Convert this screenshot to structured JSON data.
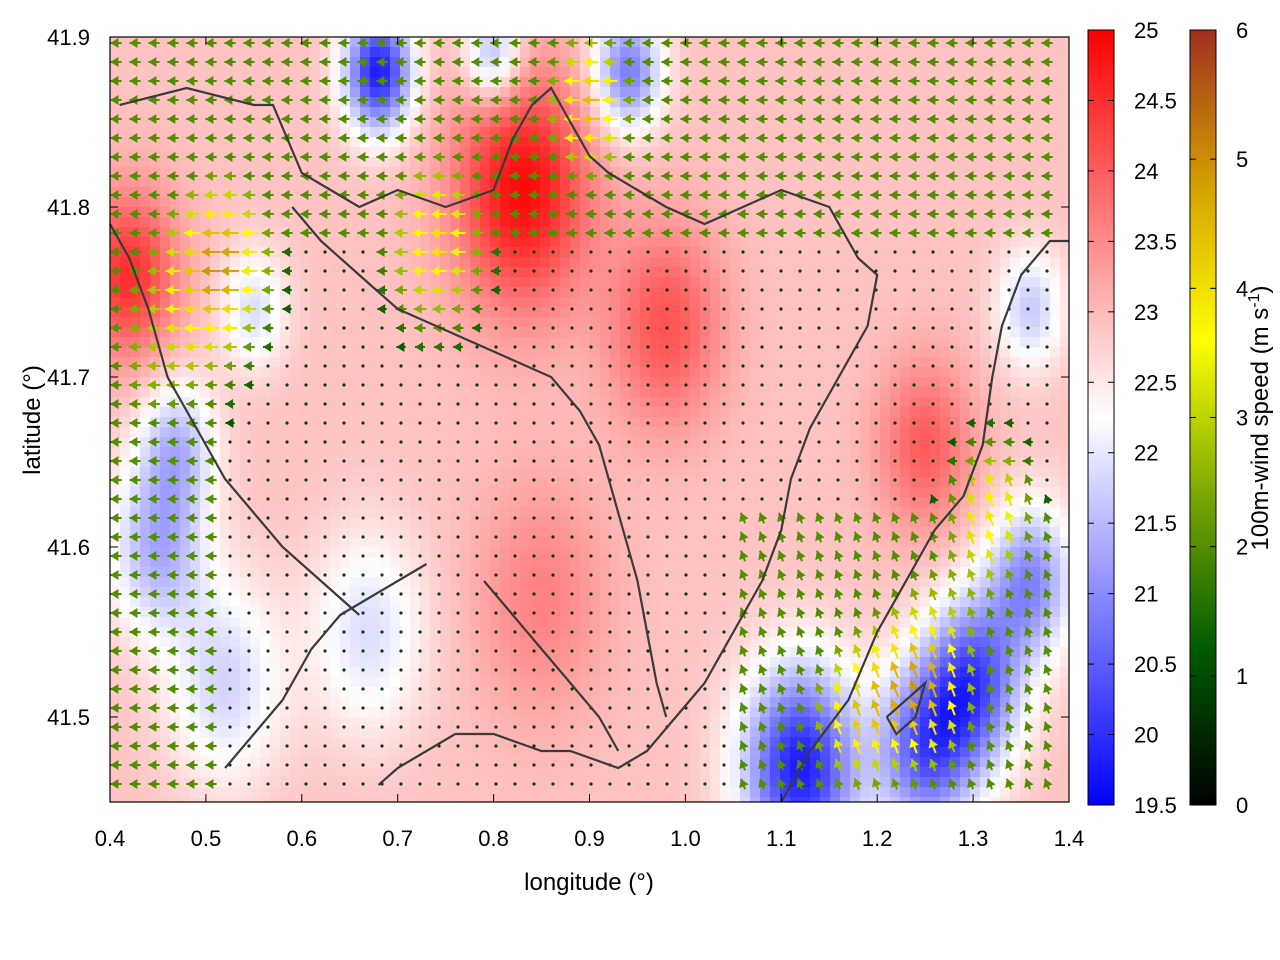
{
  "chart_data": {
    "type": "heatmap",
    "xlabel": "longitude (°)",
    "ylabel": "latitude (°)",
    "xlim": [
      0.4,
      1.4
    ],
    "ylim": [
      1.45,
      1.9
    ],
    "x_ticks": [
      "0.4",
      "0.5",
      "0.6",
      "0.7",
      "0.8",
      "0.9",
      "1.0",
      "1.1",
      "1.2",
      "1.3",
      "1.4"
    ],
    "y_ticks": [
      "41.5",
      "41.6",
      "41.7",
      "41.8",
      "41.9"
    ],
    "y_tick_values": [
      1.5,
      1.6,
      1.7,
      1.8,
      1.9
    ],
    "temperature_colorbar": {
      "range": [
        19.5,
        25
      ],
      "ticks": [
        "19.5",
        "20",
        "20.5",
        "21",
        "21.5",
        "22",
        "22.5",
        "23",
        "23.5",
        "24",
        "24.5",
        "25"
      ],
      "colors": [
        "#0000ff",
        "#ffffff",
        "#ff0000"
      ]
    },
    "wind_colorbar": {
      "label": "100m-wind speed (m s-1)",
      "range": [
        0,
        6
      ],
      "ticks": [
        "0",
        "1",
        "2",
        "3",
        "4",
        "5",
        "6"
      ],
      "colors": [
        "#000000",
        "#005a00",
        "#7aa800",
        "#ffff00",
        "#d4a000",
        "#a03020"
      ]
    },
    "background_temperature": 22.9,
    "temperature_features": [
      {
        "lon": 0.83,
        "lat": 1.81,
        "value": 24.9,
        "spread": 0.07
      },
      {
        "lon": 0.42,
        "lat": 1.76,
        "value": 24.5,
        "spread": 0.05
      },
      {
        "lon": 0.98,
        "lat": 1.73,
        "value": 24.1,
        "spread": 0.06
      },
      {
        "lon": 1.25,
        "lat": 1.66,
        "value": 24.0,
        "spread": 0.05
      },
      {
        "lon": 0.85,
        "lat": 1.57,
        "value": 23.6,
        "spread": 0.07
      },
      {
        "lon": 0.68,
        "lat": 1.88,
        "value": 19.8,
        "spread": 0.035
      },
      {
        "lon": 0.94,
        "lat": 1.88,
        "value": 20.8,
        "spread": 0.035
      },
      {
        "lon": 0.8,
        "lat": 1.89,
        "value": 21.3,
        "spread": 0.03
      },
      {
        "lon": 1.12,
        "lat": 1.47,
        "value": 19.8,
        "spread": 0.06
      },
      {
        "lon": 1.25,
        "lat": 1.48,
        "value": 20.6,
        "spread": 0.05
      },
      {
        "lon": 1.3,
        "lat": 1.52,
        "value": 20.4,
        "spread": 0.05
      },
      {
        "lon": 1.36,
        "lat": 1.58,
        "value": 21.0,
        "spread": 0.045
      },
      {
        "lon": 0.45,
        "lat": 1.6,
        "value": 21.4,
        "spread": 0.05
      },
      {
        "lon": 0.52,
        "lat": 1.52,
        "value": 21.8,
        "spread": 0.06
      },
      {
        "lon": 0.67,
        "lat": 1.55,
        "value": 21.9,
        "spread": 0.06
      },
      {
        "lon": 0.55,
        "lat": 1.74,
        "value": 21.9,
        "spread": 0.035
      },
      {
        "lon": 1.36,
        "lat": 1.74,
        "value": 21.7,
        "spread": 0.035
      },
      {
        "lon": 0.47,
        "lat": 1.66,
        "value": 21.6,
        "spread": 0.04
      }
    ],
    "wind_features": [
      {
        "lon": 0.52,
        "lat": 1.77,
        "speed": 4.2,
        "spread": 0.055
      },
      {
        "lon": 0.74,
        "lat": 1.78,
        "speed": 4.0,
        "spread": 0.06
      },
      {
        "lon": 0.9,
        "lat": 1.86,
        "speed": 4.4,
        "spread": 0.05
      },
      {
        "lon": 1.25,
        "lat": 1.52,
        "speed": 4.6,
        "spread": 0.06
      },
      {
        "lon": 1.32,
        "lat": 1.62,
        "speed": 3.8,
        "spread": 0.05
      },
      {
        "lon": 1.17,
        "lat": 1.5,
        "speed": 3.5,
        "spread": 0.05
      },
      {
        "lon": 0.45,
        "lat": 1.72,
        "speed": 2.6,
        "spread": 0.08
      }
    ],
    "coastlines": [
      [
        [
          0.41,
          1.86
        ],
        [
          0.48,
          1.87
        ],
        [
          0.55,
          1.86
        ],
        [
          0.57,
          1.86
        ],
        [
          0.6,
          1.82
        ],
        [
          0.63,
          1.81
        ],
        [
          0.66,
          1.8
        ],
        [
          0.7,
          1.81
        ],
        [
          0.75,
          1.8
        ],
        [
          0.8,
          1.81
        ],
        [
          0.82,
          1.84
        ],
        [
          0.84,
          1.86
        ],
        [
          0.86,
          1.87
        ],
        [
          0.88,
          1.85
        ],
        [
          0.9,
          1.83
        ],
        [
          0.92,
          1.82
        ],
        [
          0.95,
          1.81
        ],
        [
          0.98,
          1.8
        ],
        [
          1.02,
          1.79
        ],
        [
          1.06,
          1.8
        ],
        [
          1.1,
          1.81
        ],
        [
          1.15,
          1.8
        ],
        [
          1.18,
          1.77
        ],
        [
          1.2,
          1.76
        ],
        [
          1.19,
          1.73
        ],
        [
          1.16,
          1.7
        ],
        [
          1.13,
          1.67
        ],
        [
          1.11,
          1.64
        ],
        [
          1.1,
          1.61
        ],
        [
          1.08,
          1.58
        ],
        [
          1.05,
          1.55
        ],
        [
          1.02,
          1.52
        ],
        [
          0.99,
          1.5
        ],
        [
          0.96,
          1.48
        ],
        [
          0.93,
          1.47
        ],
        [
          0.88,
          1.48
        ],
        [
          0.85,
          1.48
        ],
        [
          0.8,
          1.49
        ],
        [
          0.76,
          1.49
        ],
        [
          0.73,
          1.48
        ],
        [
          0.7,
          1.47
        ],
        [
          0.68,
          1.46
        ]
      ],
      [
        [
          0.59,
          1.8
        ],
        [
          0.62,
          1.78
        ],
        [
          0.66,
          1.76
        ],
        [
          0.7,
          1.74
        ],
        [
          0.74,
          1.73
        ],
        [
          0.78,
          1.72
        ],
        [
          0.82,
          1.71
        ],
        [
          0.86,
          1.7
        ],
        [
          0.89,
          1.68
        ],
        [
          0.91,
          1.66
        ],
        [
          0.92,
          1.64
        ],
        [
          0.93,
          1.62
        ],
        [
          0.94,
          1.6
        ],
        [
          0.95,
          1.58
        ],
        [
          0.96,
          1.55
        ],
        [
          0.97,
          1.52
        ],
        [
          0.98,
          1.5
        ]
      ],
      [
        [
          0.52,
          1.47
        ],
        [
          0.55,
          1.49
        ],
        [
          0.58,
          1.51
        ],
        [
          0.61,
          1.54
        ],
        [
          0.64,
          1.56
        ],
        [
          0.67,
          1.57
        ],
        [
          0.7,
          1.58
        ],
        [
          0.73,
          1.59
        ]
      ],
      [
        [
          0.4,
          1.79
        ],
        [
          0.42,
          1.77
        ],
        [
          0.44,
          1.74
        ],
        [
          0.46,
          1.7
        ],
        [
          0.48,
          1.68
        ],
        [
          0.5,
          1.66
        ],
        [
          0.52,
          1.64
        ],
        [
          0.55,
          1.62
        ],
        [
          0.58,
          1.6
        ],
        [
          0.62,
          1.58
        ],
        [
          0.66,
          1.56
        ]
      ],
      [
        [
          0.79,
          1.58
        ],
        [
          0.82,
          1.56
        ],
        [
          0.85,
          1.54
        ],
        [
          0.88,
          1.52
        ],
        [
          0.91,
          1.5
        ],
        [
          0.93,
          1.48
        ]
      ],
      [
        [
          1.1,
          1.45
        ],
        [
          1.13,
          1.48
        ],
        [
          1.17,
          1.51
        ],
        [
          1.2,
          1.55
        ],
        [
          1.23,
          1.58
        ],
        [
          1.26,
          1.61
        ],
        [
          1.29,
          1.63
        ],
        [
          1.31,
          1.66
        ],
        [
          1.32,
          1.7
        ],
        [
          1.33,
          1.73
        ],
        [
          1.35,
          1.76
        ],
        [
          1.38,
          1.78
        ],
        [
          1.4,
          1.78
        ]
      ],
      [
        [
          1.21,
          1.5
        ],
        [
          1.23,
          1.51
        ],
        [
          1.25,
          1.52
        ],
        [
          1.24,
          1.5
        ],
        [
          1.22,
          1.49
        ],
        [
          1.21,
          1.5
        ]
      ]
    ]
  }
}
